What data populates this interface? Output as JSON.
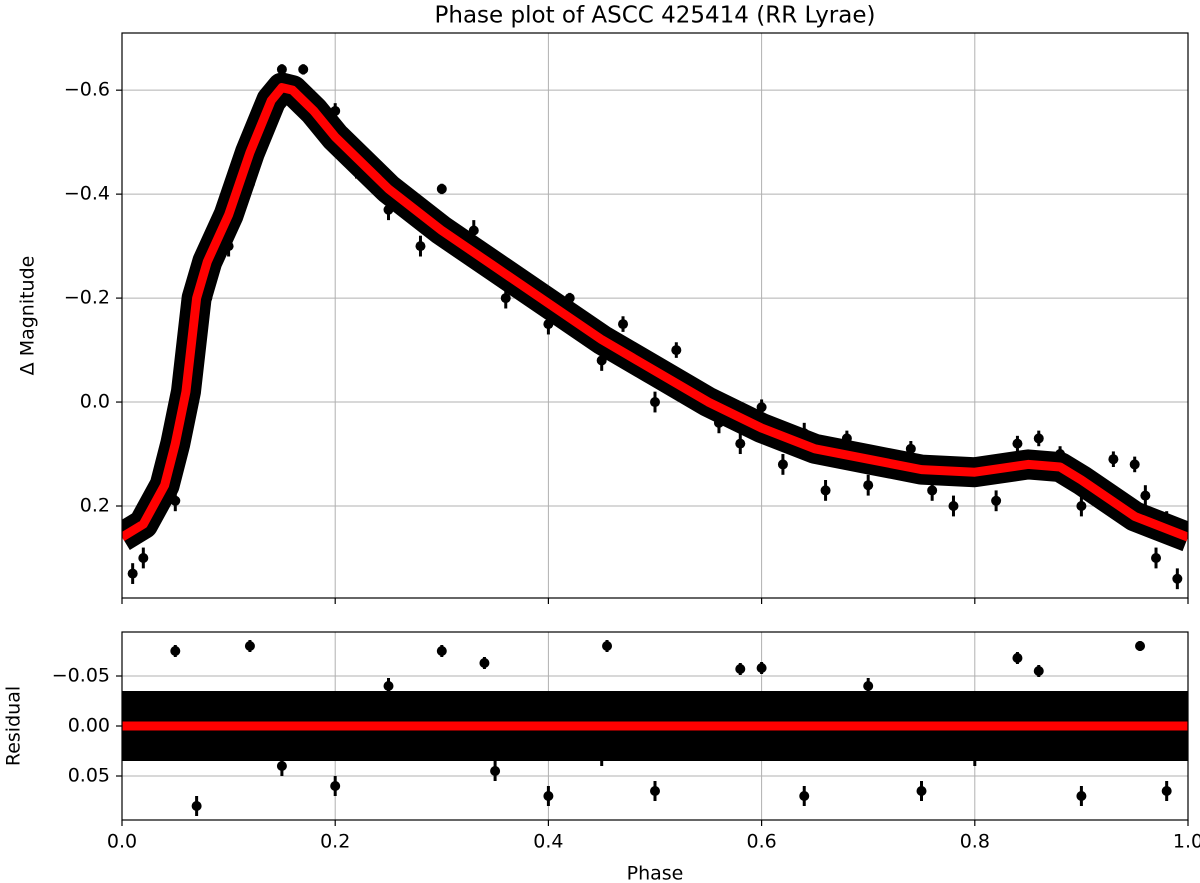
{
  "chart_data": [
    {
      "type": "scatter",
      "title": "Phase plot of ASCC 425414 (RR Lyrae)",
      "ylabel": "Δ Magnitude",
      "xlim": [
        0,
        1
      ],
      "xticks": [
        0,
        0.2,
        0.4,
        0.6,
        0.8,
        1
      ],
      "xtick_labels": false,
      "ylim": [
        0.377,
        -0.71
      ],
      "yticks": [
        {
          "value": -0.6,
          "label": "−0.6"
        },
        {
          "value": -0.4,
          "label": "−0.4"
        },
        {
          "value": -0.2,
          "label": "−0.2"
        },
        {
          "value": 0,
          "label": "0.0"
        },
        0.2
      ],
      "grid": true,
      "series": [
        {
          "style": "errorbar",
          "color": "#000000",
          "x": [
            0.3,
            0.42,
            0.42,
            0.56,
            0.58,
            0.62,
            0.66,
            0.7,
            0.78,
            0.82,
            0.9,
            0.95,
            0.97,
            0.99,
            0.01,
            0.02,
            0.05,
            0.08,
            0.1,
            0.12,
            0.14,
            0.15,
            0.17,
            0.2,
            0.22,
            0.25,
            0.28,
            0.33,
            0.36,
            0.4,
            0.45,
            0.47,
            0.5,
            0.52,
            0.6,
            0.64,
            0.68,
            0.74,
            0.76,
            0.84,
            0.86,
            0.88,
            0.92,
            0.93,
            0.96,
            0.98
          ],
          "values": [
            -0.41,
            -0.2,
            -0.18,
            0.04,
            0.08,
            0.12,
            0.17,
            0.16,
            0.2,
            0.19,
            0.2,
            0.12,
            0.3,
            0.34,
            0.33,
            0.3,
            0.19,
            -0.2,
            -0.3,
            -0.42,
            -0.54,
            -0.64,
            -0.64,
            -0.56,
            -0.45,
            -0.37,
            -0.3,
            -0.33,
            -0.2,
            -0.15,
            -0.08,
            -0.15,
            0.0,
            -0.1,
            0.01,
            0.06,
            0.07,
            0.09,
            0.17,
            0.08,
            0.07,
            0.1,
            0.17,
            0.11,
            0.18,
            0.23
          ],
          "errors": [
            0.01,
            0.01,
            0.015,
            0.02,
            0.02,
            0.02,
            0.02,
            0.02,
            0.02,
            0.02,
            0.02,
            0.015,
            0.02,
            0.02,
            0.02,
            0.02,
            0.02,
            0.02,
            0.02,
            0.02,
            0.02,
            0.01,
            0.01,
            0.015,
            0.02,
            0.02,
            0.02,
            0.02,
            0.02,
            0.02,
            0.02,
            0.015,
            0.02,
            0.015,
            0.015,
            0.02,
            0.015,
            0.015,
            0.02,
            0.015,
            0.015,
            0.015,
            0.02,
            0.015,
            0.02,
            0.02
          ]
        },
        {
          "style": "line",
          "color": "#ff0000",
          "x": [
            0,
            0.02,
            0.04,
            0.05,
            0.06,
            0.07,
            0.08,
            0.1,
            0.12,
            0.14,
            0.15,
            0.16,
            0.18,
            0.2,
            0.25,
            0.3,
            0.35,
            0.4,
            0.45,
            0.5,
            0.55,
            0.6,
            0.65,
            0.7,
            0.75,
            0.8,
            0.85,
            0.88,
            0.9,
            0.95,
            1
          ],
          "values": [
            0.26,
            0.235,
            0.16,
            0.08,
            -0.02,
            -0.2,
            -0.27,
            -0.36,
            -0.48,
            -0.58,
            -0.605,
            -0.6,
            -0.56,
            -0.51,
            -0.41,
            -0.33,
            -0.26,
            -0.19,
            -0.12,
            -0.06,
            0.0,
            0.05,
            0.09,
            0.11,
            0.13,
            0.135,
            0.12,
            0.125,
            0.15,
            0.22,
            0.26
          ]
        }
      ]
    },
    {
      "type": "scatter",
      "ylabel": "Residual",
      "xlabel": "Phase",
      "xlim": [
        0,
        1
      ],
      "xticks": [
        {
          "value": 0,
          "label": "0.0"
        },
        0.2,
        0.4,
        0.6,
        0.8,
        {
          "value": 1,
          "label": "1.0"
        }
      ],
      "ylim": [
        0.094,
        -0.094
      ],
      "yticks": [
        {
          "value": -0.05,
          "label": "−0.05"
        },
        {
          "value": 0,
          "label": "0.00"
        },
        0.05
      ],
      "grid": true,
      "series": [
        {
          "style": "errorbar",
          "color": "#000000",
          "x": [
            0.3,
            0.34,
            0.455,
            0.58,
            0.6,
            0.84,
            0.86,
            0.955,
            0.12,
            0.05,
            0.07,
            0.2,
            0.4,
            0.5,
            0.64,
            0.75,
            0.9,
            0.98,
            0.25,
            0.7,
            0.15,
            0.45,
            0.8,
            0.35
          ],
          "values": [
            -0.075,
            -0.063,
            -0.08,
            -0.057,
            -0.058,
            -0.068,
            -0.055,
            -0.08,
            -0.08,
            -0.075,
            0.08,
            0.06,
            0.07,
            0.065,
            0.07,
            0.065,
            0.07,
            0.065,
            -0.04,
            -0.04,
            0.04,
            0.03,
            0.03,
            0.045
          ],
          "errors": [
            0.006,
            0.006,
            0.006,
            0.006,
            0.006,
            0.006,
            0.006,
            0.005,
            0.006,
            0.006,
            0.01,
            0.01,
            0.01,
            0.01,
            0.01,
            0.01,
            0.01,
            0.01,
            0.008,
            0.008,
            0.01,
            0.01,
            0.01,
            0.01
          ]
        },
        {
          "style": "line",
          "color": "#ff0000",
          "x": [
            0,
            1
          ],
          "values": [
            0,
            0
          ]
        }
      ]
    }
  ]
}
